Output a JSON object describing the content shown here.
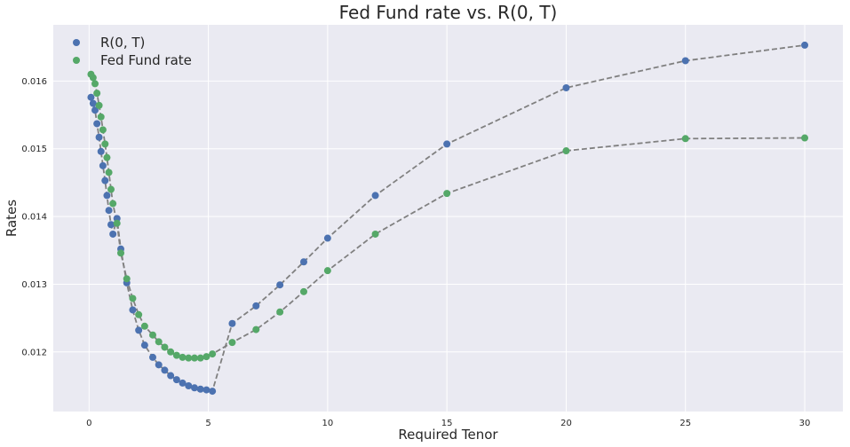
{
  "chart_data": {
    "type": "scatter",
    "title": "Fed Fund rate vs. R(0, T)",
    "xlabel": "Required Tenor",
    "ylabel": "Rates",
    "xlim": [
      -1.5,
      31.6
    ],
    "ylim": [
      0.01112,
      0.01683
    ],
    "x_ticks": [
      0,
      5,
      10,
      15,
      20,
      25,
      30
    ],
    "x_tick_labels": [
      "0",
      "5",
      "10",
      "15",
      "20",
      "25",
      "30"
    ],
    "y_ticks": [
      0.012,
      0.013,
      0.014,
      0.015,
      0.016
    ],
    "y_tick_labels": [
      "0.012",
      "0.013",
      "0.014",
      "0.015",
      "0.016"
    ],
    "grid": true,
    "legend_position": "top-left",
    "connector_color": "#808080",
    "series": [
      {
        "name": "R(0, T)",
        "color": "#4c72b0",
        "x": [
          0.08,
          0.17,
          0.25,
          0.33,
          0.42,
          0.5,
          0.58,
          0.67,
          0.75,
          0.83,
          0.92,
          1.0,
          1.17,
          1.33,
          1.58,
          1.83,
          2.08,
          2.33,
          2.67,
          2.92,
          3.17,
          3.42,
          3.67,
          3.92,
          4.17,
          4.42,
          4.67,
          4.92,
          5.17,
          6.0,
          7.0,
          8.0,
          9.0,
          10.0,
          12.0,
          15.0,
          20.0,
          25.0,
          30.0
        ],
        "y": [
          0.01576,
          0.01567,
          0.01557,
          0.01537,
          0.01517,
          0.01496,
          0.01475,
          0.01453,
          0.01431,
          0.01409,
          0.01388,
          0.01374,
          0.01397,
          0.01352,
          0.01302,
          0.01262,
          0.01232,
          0.0121,
          0.01192,
          0.01181,
          0.01173,
          0.01165,
          0.01159,
          0.01154,
          0.0115,
          0.01147,
          0.01145,
          0.01144,
          0.01142,
          0.01242,
          0.01268,
          0.01299,
          0.01333,
          0.01368,
          0.01431,
          0.01507,
          0.0159,
          0.0163,
          0.01653
        ]
      },
      {
        "name": "Fed Fund rate",
        "color": "#55a868",
        "x": [
          0.08,
          0.17,
          0.25,
          0.33,
          0.42,
          0.5,
          0.58,
          0.67,
          0.75,
          0.83,
          0.92,
          1.0,
          1.17,
          1.33,
          1.58,
          1.83,
          2.08,
          2.33,
          2.67,
          2.92,
          3.17,
          3.42,
          3.67,
          3.92,
          4.17,
          4.42,
          4.67,
          4.92,
          5.17,
          6.0,
          7.0,
          8.0,
          9.0,
          10.0,
          12.0,
          15.0,
          20.0,
          25.0,
          30.0
        ],
        "y": [
          0.0161,
          0.01605,
          0.01596,
          0.01582,
          0.01564,
          0.01547,
          0.01528,
          0.01507,
          0.01487,
          0.01465,
          0.0144,
          0.01419,
          0.0139,
          0.01346,
          0.01308,
          0.01279,
          0.01255,
          0.01238,
          0.01225,
          0.01215,
          0.01207,
          0.012,
          0.01195,
          0.01192,
          0.01191,
          0.01191,
          0.01191,
          0.01193,
          0.01197,
          0.01214,
          0.01233,
          0.01259,
          0.01289,
          0.0132,
          0.01374,
          0.01434,
          0.01497,
          0.01515,
          0.01516
        ]
      }
    ]
  }
}
